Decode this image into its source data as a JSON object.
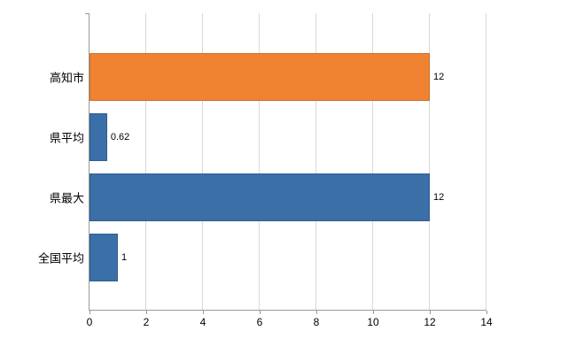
{
  "chart_data": {
    "type": "bar",
    "orientation": "horizontal",
    "title": "",
    "xlabel": "",
    "ylabel": "",
    "categories": [
      "高知市",
      "県平均",
      "県最大",
      "全国平均"
    ],
    "values": [
      12,
      0.62,
      12,
      1
    ],
    "value_labels": [
      "12",
      "0.62",
      "12",
      "1"
    ],
    "bar_colors": [
      "#ef8332",
      "#3a6fa8",
      "#3a6fa8",
      "#3a6fa8"
    ],
    "xlim": [
      0,
      14
    ],
    "xticks": [
      0,
      2,
      4,
      6,
      8,
      10,
      12,
      14
    ],
    "grid": true,
    "legend": "none"
  },
  "colors": {
    "background": "#ffffff",
    "grid": "#d9d9d9",
    "axis": "#999999",
    "text": "#000000"
  }
}
